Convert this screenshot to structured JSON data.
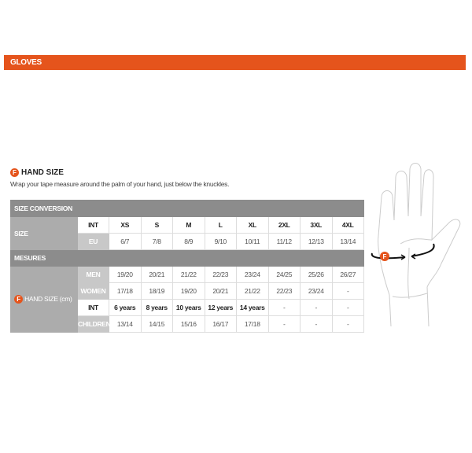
{
  "header": {
    "title": "GLOVES"
  },
  "section": {
    "badge": "F",
    "title": "HAND SIZE",
    "description": "Wrap your tape measure around the palm of your hand, just below the knuckles."
  },
  "table": {
    "size_conversion": "SIZE CONVERSION",
    "size_label": "SIZE",
    "int_label": "INT",
    "eu_label": "EU",
    "int_sizes": [
      "XS",
      "S",
      "M",
      "L",
      "XL",
      "2XL",
      "3XL",
      "4XL"
    ],
    "eu_sizes": [
      "6/7",
      "7/8",
      "8/9",
      "9/10",
      "10/11",
      "11/12",
      "12/13",
      "13/14"
    ],
    "measures": "MESURES",
    "hand_size_label": "HAND SIZE (cm)",
    "men_label": "MEN",
    "women_label": "WOMEN",
    "children_int_label": "INT",
    "children_label": "CHILDREN",
    "men": [
      "19/20",
      "20/21",
      "21/22",
      "22/23",
      "23/24",
      "24/25",
      "25/26",
      "26/27"
    ],
    "women": [
      "17/18",
      "18/19",
      "19/20",
      "20/21",
      "21/22",
      "22/23",
      "23/24",
      "-"
    ],
    "children_int": [
      "6 years",
      "8 years",
      "10 years",
      "12 years",
      "14 years",
      "-",
      "-",
      "-"
    ],
    "children": [
      "13/14",
      "14/15",
      "15/16",
      "16/17",
      "17/18",
      "-",
      "-",
      "-"
    ]
  },
  "colors": {
    "accent": "#e5541c",
    "section_header": "#8c8c8c"
  },
  "illustration": {
    "icon": "hand-measure-icon",
    "badge": "F"
  }
}
